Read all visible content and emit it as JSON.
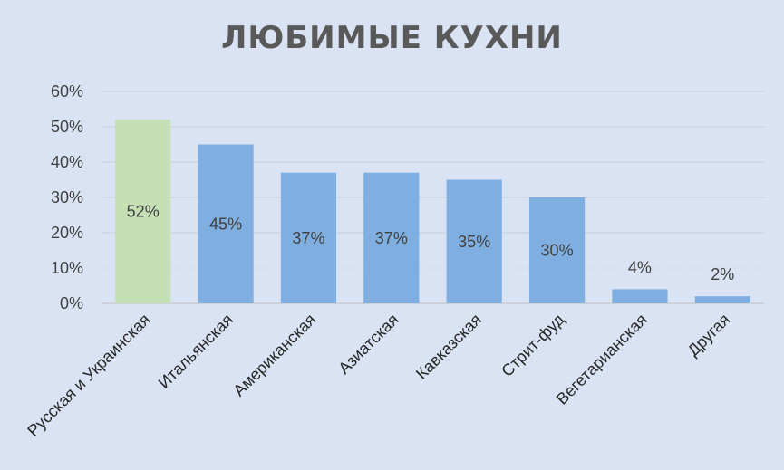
{
  "chart_data": {
    "type": "bar",
    "title": "ЛЮБИМЫЕ КУХНИ",
    "xlabel": "",
    "ylabel": "",
    "categories": [
      "Русская и Украинская",
      "Итальянская",
      "Американская",
      "Азиатская",
      "Кавказская",
      "Стрит-фуд",
      "Вегетарианская",
      "Другая"
    ],
    "values": [
      52,
      45,
      37,
      37,
      35,
      30,
      4,
      2
    ],
    "data_labels": [
      "52%",
      "45%",
      "37%",
      "37%",
      "35%",
      "30%",
      "4%",
      "2%"
    ],
    "bar_colors": [
      "#c5e0b4",
      "#7fafe0",
      "#7fafe0",
      "#7fafe0",
      "#7fafe0",
      "#7fafe0",
      "#7fafe0",
      "#7fafe0"
    ],
    "ylim": [
      0,
      60
    ],
    "yticks": [
      0,
      10,
      20,
      30,
      40,
      50,
      60
    ],
    "ytick_labels": [
      "0%",
      "10%",
      "20%",
      "30%",
      "40%",
      "50%",
      "60%"
    ],
    "grid": true,
    "legend": "none"
  }
}
